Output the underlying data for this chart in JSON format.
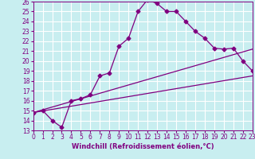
{
  "xlabel": "Windchill (Refroidissement éolien,°C)",
  "bg_color": "#c8eef0",
  "line_color": "#800080",
  "grid_color": "#ffffff",
  "xlim": [
    0,
    23
  ],
  "ylim": [
    13,
    26
  ],
  "xticks": [
    0,
    1,
    2,
    3,
    4,
    5,
    6,
    7,
    8,
    9,
    10,
    11,
    12,
    13,
    14,
    15,
    16,
    17,
    18,
    19,
    20,
    21,
    22,
    23
  ],
  "yticks": [
    13,
    14,
    15,
    16,
    17,
    18,
    19,
    20,
    21,
    22,
    23,
    24,
    25,
    26
  ],
  "line1_x": [
    0,
    1,
    2,
    3,
    4,
    5,
    6,
    7,
    8,
    9,
    10,
    11,
    12,
    13,
    14,
    15,
    16,
    17,
    18,
    19,
    20,
    21,
    22,
    23
  ],
  "line1_y": [
    14.8,
    15.0,
    14.0,
    13.3,
    16.0,
    16.2,
    16.6,
    18.5,
    18.8,
    21.5,
    22.3,
    25.0,
    26.2,
    25.8,
    25.0,
    25.0,
    24.0,
    23.0,
    22.3,
    21.3,
    21.2,
    21.3,
    20.0,
    19.0
  ],
  "line2_x": [
    0,
    23
  ],
  "line2_y": [
    14.8,
    21.2
  ],
  "line3_x": [
    0,
    23
  ],
  "line3_y": [
    14.8,
    18.5
  ],
  "tick_fontsize": 5.5,
  "xlabel_fontsize": 6.0
}
